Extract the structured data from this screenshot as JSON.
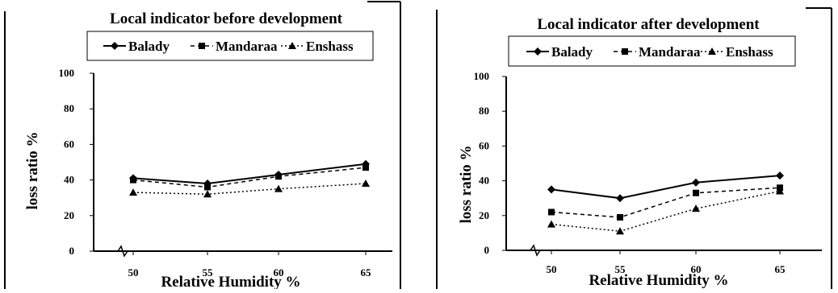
{
  "chart_data": [
    {
      "type": "line",
      "title": "Local indicator before development",
      "xlabel": "Relative Humidity %",
      "ylabel": "loss ratio %",
      "categories": [
        "50",
        "55",
        "60",
        "65"
      ],
      "yticks": [
        "0",
        "20",
        "40",
        "60",
        "80",
        "100"
      ],
      "ylim": [
        0,
        100
      ],
      "legend_position": "top",
      "grid": false,
      "series": [
        {
          "name": "Balady",
          "values": [
            41,
            38,
            43,
            49
          ],
          "marker": "diamond",
          "line": "solid"
        },
        {
          "name": "Mandaraa",
          "values": [
            40,
            36,
            42,
            47
          ],
          "marker": "square",
          "line": "dashed"
        },
        {
          "name": "Enshass",
          "values": [
            33,
            32,
            35,
            38
          ],
          "marker": "triangle",
          "line": "dotted"
        }
      ]
    },
    {
      "type": "line",
      "title": "Local indicator after development",
      "xlabel": "Relative Humidity %",
      "ylabel": "loss ratio %",
      "categories": [
        "50",
        "55",
        "60",
        "65"
      ],
      "yticks": [
        "0",
        "20",
        "40",
        "60",
        "80",
        "100"
      ],
      "ylim": [
        0,
        100
      ],
      "legend_position": "top",
      "grid": false,
      "series": [
        {
          "name": "Balady",
          "values": [
            35,
            30,
            39,
            43
          ],
          "marker": "diamond",
          "line": "solid"
        },
        {
          "name": "Mandaraa",
          "values": [
            22,
            19,
            33,
            36
          ],
          "marker": "square",
          "line": "dashed"
        },
        {
          "name": "Enshass",
          "values": [
            15,
            11,
            24,
            34
          ],
          "marker": "triangle",
          "line": "dotted"
        }
      ]
    }
  ]
}
